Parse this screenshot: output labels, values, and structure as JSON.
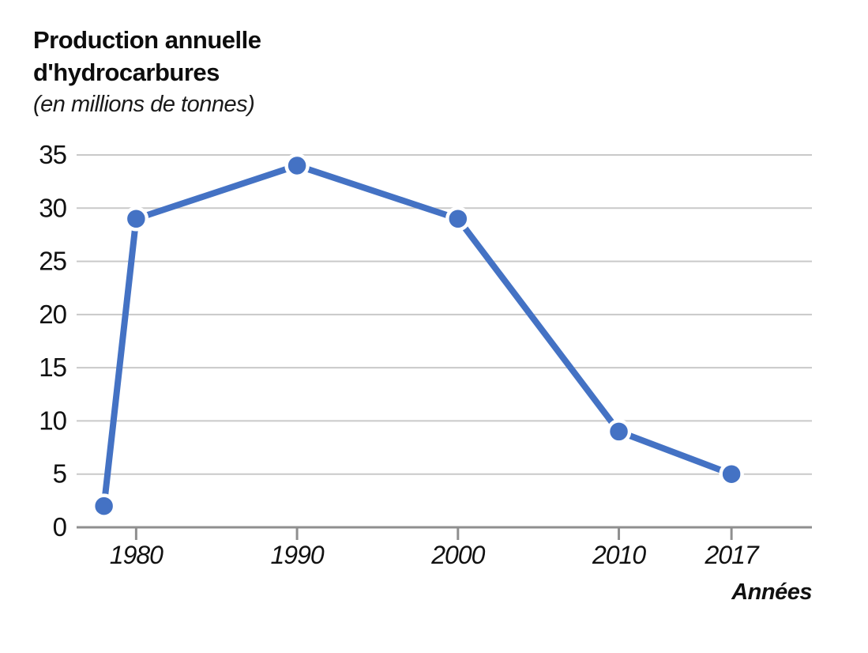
{
  "header": {
    "title_line1": "Production annuelle",
    "title_line2": "d'hydrocarbures",
    "subtitle": "(en millions de tonnes)"
  },
  "chart_data": {
    "type": "line",
    "title": "Production annuelle d'hydrocarbures",
    "subtitle": "(en millions de tonnes)",
    "xlabel": "Années",
    "ylabel": "en millions de tonnes",
    "x": [
      1978,
      1980,
      1990,
      2000,
      2010,
      2017
    ],
    "values": [
      2,
      29,
      34,
      29,
      9,
      5
    ],
    "x_ticks": [
      1980,
      1990,
      2000,
      2010,
      2017
    ],
    "y_ticks": [
      0,
      5,
      10,
      15,
      20,
      25,
      30,
      35
    ],
    "xlim": [
      1976.3,
      2022
    ],
    "ylim": [
      0,
      35
    ],
    "grid": "horizontal-only",
    "legend": "none",
    "marker": "circle",
    "colors": {
      "line": "#4472C4",
      "marker_fill": "#4472C4",
      "marker_outline": "#FFFFFF",
      "gridline": "#C9C9C9",
      "axis": "#8F8F8F",
      "text": "#111111",
      "background": "#FFFFFF"
    }
  }
}
